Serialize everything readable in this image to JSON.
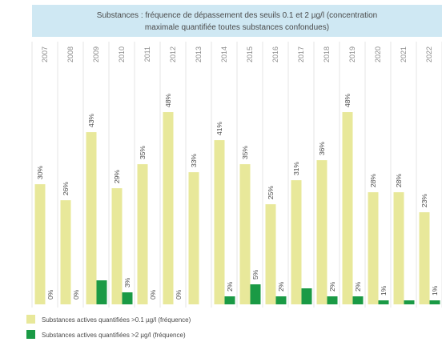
{
  "chart_data": {
    "type": "bar",
    "title_lines": [
      "Substances : fréquence de dépassement des seuils 0.1 et 2 µg/l (concentration",
      "maximale quantifiée toutes substances confondues)"
    ],
    "categories": [
      "2007",
      "2008",
      "2009",
      "2010",
      "2011",
      "2012",
      "2013",
      "2014",
      "2015",
      "2016",
      "2017",
      "2018",
      "2019",
      "2020",
      "2021",
      "2022"
    ],
    "series": [
      {
        "name": "Substances actives quantifiées >0.1 µg/l (fréquence)",
        "color": "#e8e89a",
        "values": [
          30,
          26,
          43,
          29,
          35,
          48,
          33,
          41,
          35,
          25,
          31,
          36,
          48,
          28,
          28,
          23
        ],
        "labels": [
          "30%",
          "26%",
          "43%",
          "29%",
          "35%",
          "48%",
          "33%",
          "41%",
          "35%",
          "25%",
          "31%",
          "36%",
          "48%",
          "28%",
          "28%",
          "23%"
        ]
      },
      {
        "name": "Substances actives quantifiées >2 µg/l (fréquence)",
        "color": "#1a9a45",
        "values": [
          0,
          0,
          6,
          3,
          0,
          0,
          0,
          2,
          5,
          2,
          4,
          2,
          2,
          1,
          1,
          1
        ],
        "labels": [
          "0%",
          "0%",
          "",
          "3%",
          "0%",
          "0%",
          "",
          "2%",
          "5%",
          "2%",
          "",
          "2%",
          "2%",
          "1%",
          "",
          "1%"
        ]
      }
    ],
    "ylim": [
      0,
      52
    ],
    "legend_position": "bottom-left",
    "grid": "vertical"
  }
}
